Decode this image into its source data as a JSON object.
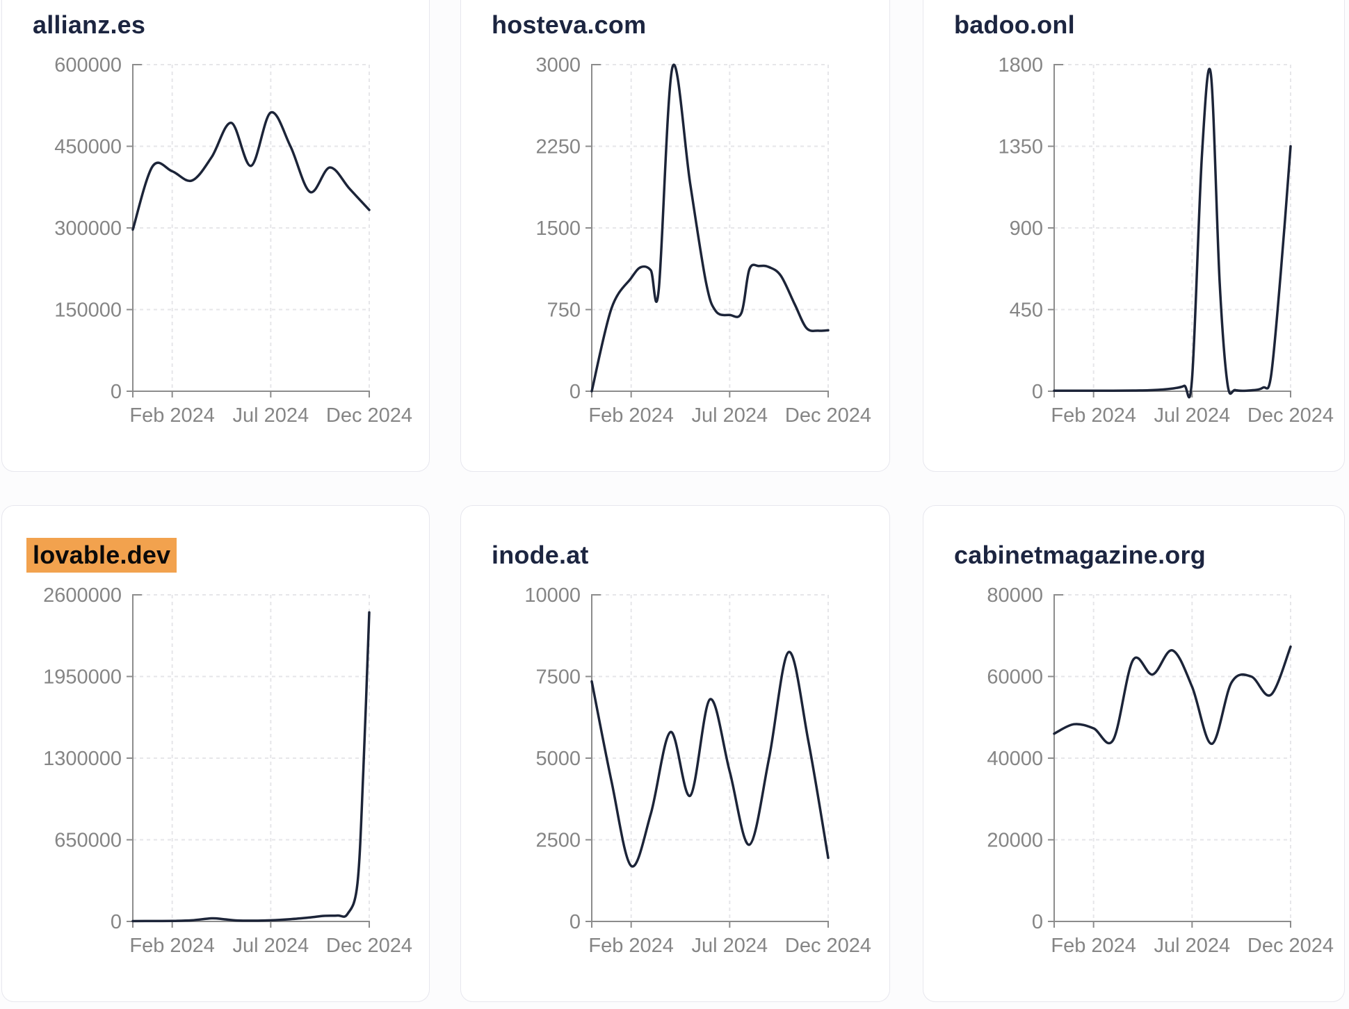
{
  "theme": {
    "line_color": "#1c2438",
    "title_color": "#1c2540",
    "highlight_color": "#f2a24e",
    "axis_color": "#8c8c8c",
    "tick_label_color": "#858585",
    "grid_color": "#e6e6e9",
    "card_background": "#ffffff",
    "page_background": "#fcfcfd"
  },
  "chart_data": [
    {
      "type": "line",
      "title": "allianz.es",
      "title_highlighted": false,
      "x_tick_labels": [
        "Feb 2024",
        "Jul 2024",
        "Dec 2024"
      ],
      "x_tick_months": [
        2,
        7,
        12
      ],
      "x_domain_months": [
        "Dec 2023",
        "Dec 2024"
      ],
      "y_ticks": [
        0,
        150000,
        300000,
        450000,
        600000
      ],
      "ylim": [
        0,
        600000
      ],
      "grid": true,
      "points_month_value": [
        [
          0,
          297000
        ],
        [
          1,
          413000
        ],
        [
          2,
          404000
        ],
        [
          3,
          387000
        ],
        [
          4,
          430000
        ],
        [
          5,
          493000
        ],
        [
          6,
          414000
        ],
        [
          7,
          512000
        ],
        [
          8,
          450000
        ],
        [
          9,
          366000
        ],
        [
          10,
          411000
        ],
        [
          11,
          372000
        ],
        [
          12,
          333000
        ]
      ]
    },
    {
      "type": "line",
      "title": "hosteva.com",
      "title_highlighted": false,
      "x_tick_labels": [
        "Feb 2024",
        "Jul 2024",
        "Dec 2024"
      ],
      "x_tick_months": [
        2,
        7,
        12
      ],
      "x_domain_months": [
        "Dec 2023",
        "Dec 2024"
      ],
      "y_ticks": [
        0,
        750,
        1500,
        2250,
        3000
      ],
      "ylim": [
        0,
        3000
      ],
      "grid": true,
      "points_month_value": [
        [
          0,
          0
        ],
        [
          1,
          760
        ],
        [
          2,
          1040
        ],
        [
          2.5,
          1140
        ],
        [
          3,
          1110
        ],
        [
          3.4,
          930
        ],
        [
          4.1,
          2980
        ],
        [
          5,
          1900
        ],
        [
          5.8,
          1000
        ],
        [
          6.3,
          735
        ],
        [
          7,
          700
        ],
        [
          7.6,
          720
        ],
        [
          8,
          1120
        ],
        [
          8.5,
          1150
        ],
        [
          9,
          1140
        ],
        [
          9.6,
          1060
        ],
        [
          10.3,
          800
        ],
        [
          10.9,
          580
        ],
        [
          11.5,
          556
        ],
        [
          12,
          560
        ]
      ]
    },
    {
      "type": "line",
      "title": "badoo.onl",
      "title_highlighted": false,
      "x_tick_labels": [
        "Feb 2024",
        "Jul 2024",
        "Dec 2024"
      ],
      "x_tick_months": [
        2,
        7,
        12
      ],
      "x_domain_months": [
        "Dec 2023",
        "Dec 2024"
      ],
      "y_ticks": [
        0,
        450,
        900,
        1350,
        1800
      ],
      "ylim": [
        0,
        1800
      ],
      "grid": true,
      "points_month_value": [
        [
          0,
          3
        ],
        [
          1,
          3
        ],
        [
          2,
          3
        ],
        [
          3,
          3
        ],
        [
          4,
          4
        ],
        [
          5,
          6
        ],
        [
          6,
          15
        ],
        [
          6.6,
          30
        ],
        [
          7,
          70
        ],
        [
          7.5,
          1300
        ],
        [
          7.95,
          1750
        ],
        [
          8.4,
          600
        ],
        [
          8.8,
          40
        ],
        [
          9.2,
          6
        ],
        [
          10,
          5
        ],
        [
          10.6,
          20
        ],
        [
          11,
          80
        ],
        [
          11.5,
          650
        ],
        [
          12,
          1350
        ]
      ]
    },
    {
      "type": "line",
      "title": "lovable.dev",
      "title_highlighted": true,
      "x_tick_labels": [
        "Feb 2024",
        "Jul 2024",
        "Dec 2024"
      ],
      "x_tick_months": [
        2,
        7,
        12
      ],
      "x_domain_months": [
        "Dec 2023",
        "Dec 2024"
      ],
      "y_ticks": [
        0,
        650000,
        1300000,
        1950000,
        2600000
      ],
      "ylim": [
        0,
        2600000
      ],
      "grid": true,
      "points_month_value": [
        [
          0,
          3000
        ],
        [
          1,
          3500
        ],
        [
          2,
          4000
        ],
        [
          3,
          9000
        ],
        [
          4,
          25000
        ],
        [
          4.6,
          18000
        ],
        [
          5.3,
          8000
        ],
        [
          6,
          6000
        ],
        [
          7,
          9000
        ],
        [
          8,
          18000
        ],
        [
          9,
          32000
        ],
        [
          9.7,
          44000
        ],
        [
          10.4,
          47000
        ],
        [
          10.9,
          60000
        ],
        [
          11.4,
          300000
        ],
        [
          11.7,
          1200000
        ],
        [
          12,
          2460000
        ]
      ]
    },
    {
      "type": "line",
      "title": "inode.at",
      "title_highlighted": false,
      "x_tick_labels": [
        "Feb 2024",
        "Jul 2024",
        "Dec 2024"
      ],
      "x_tick_months": [
        2,
        7,
        12
      ],
      "x_domain_months": [
        "Dec 2023",
        "Dec 2024"
      ],
      "y_ticks": [
        0,
        2500,
        5000,
        7500,
        10000
      ],
      "ylim": [
        0,
        10000
      ],
      "grid": true,
      "points_month_value": [
        [
          0,
          7350
        ],
        [
          1,
          4300
        ],
        [
          2,
          1700
        ],
        [
          3,
          3300
        ],
        [
          4,
          5800
        ],
        [
          5,
          3850
        ],
        [
          6,
          6800
        ],
        [
          7,
          4600
        ],
        [
          8,
          2350
        ],
        [
          9,
          5000
        ],
        [
          10,
          8250
        ],
        [
          11,
          5500
        ],
        [
          12,
          1950
        ]
      ]
    },
    {
      "type": "line",
      "title": "cabinetmagazine.org",
      "title_highlighted": false,
      "x_tick_labels": [
        "Feb 2024",
        "Jul 2024",
        "Dec 2024"
      ],
      "x_tick_months": [
        2,
        7,
        12
      ],
      "x_domain_months": [
        "Dec 2023",
        "Dec 2024"
      ],
      "y_ticks": [
        0,
        20000,
        40000,
        60000,
        80000
      ],
      "ylim": [
        0,
        80000
      ],
      "grid": true,
      "points_month_value": [
        [
          0,
          46000
        ],
        [
          1,
          48300
        ],
        [
          2,
          47300
        ],
        [
          3,
          44500
        ],
        [
          4,
          64000
        ],
        [
          5,
          60500
        ],
        [
          6,
          66400
        ],
        [
          7,
          57500
        ],
        [
          8,
          43500
        ],
        [
          9,
          58500
        ],
        [
          10,
          60000
        ],
        [
          11,
          55500
        ],
        [
          12,
          67300
        ]
      ]
    }
  ]
}
